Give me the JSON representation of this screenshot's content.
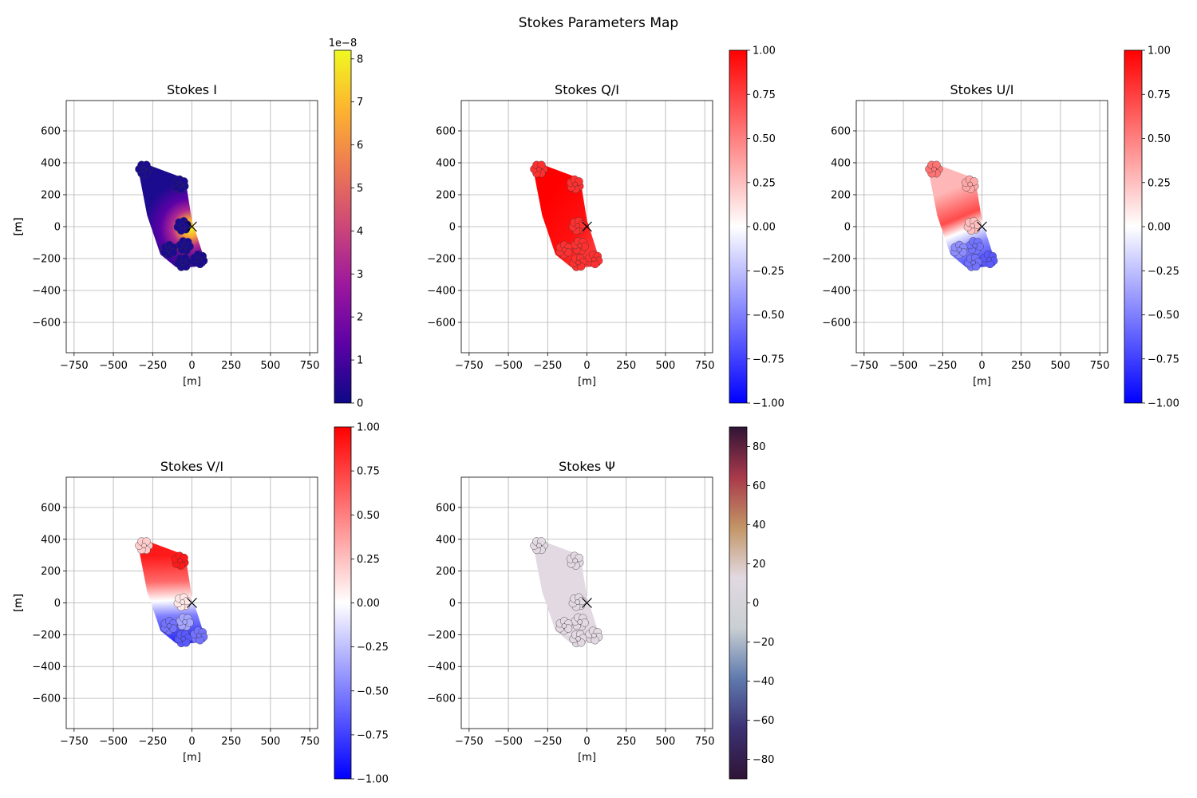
{
  "figure_title": "Stokes Parameters Map",
  "chart_data": [
    {
      "type": "heatmap",
      "title": "Stokes I",
      "xlabel": "[m]",
      "ylabel": "[m]",
      "xlim": [
        -800,
        800
      ],
      "ylim": [
        -790,
        790
      ],
      "xticks": [
        "−750",
        "−500",
        "−250",
        "0",
        "250",
        "500",
        "750"
      ],
      "xtick_values": [
        -750,
        -500,
        -250,
        0,
        250,
        500,
        750
      ],
      "yticks": [
        "600",
        "400",
        "200",
        "0",
        "−200",
        "−400",
        "−600"
      ],
      "ytick_values": [
        600,
        400,
        200,
        0,
        -200,
        -400,
        -600
      ],
      "grid": true,
      "colormap": "plasma",
      "colorbar": {
        "min": 0,
        "max": 8.2,
        "exponent": "1e−8",
        "ticks": [
          "0",
          "1",
          "2",
          "3",
          "4",
          "5",
          "6",
          "7",
          "8"
        ],
        "tick_values": [
          0,
          1,
          2,
          3,
          4,
          5,
          6,
          7,
          8
        ]
      },
      "hotspot": [
        -10,
        -10
      ],
      "marker": {
        "symbol": "x",
        "position": [
          0,
          0
        ]
      }
    },
    {
      "type": "heatmap",
      "title": "Stokes Q/I",
      "xlabel": "[m]",
      "ylabel": "[m]",
      "xlim": [
        -800,
        800
      ],
      "ylim": [
        -790,
        790
      ],
      "xticks": [
        "−750",
        "−500",
        "−250",
        "0",
        "250",
        "500",
        "750"
      ],
      "xtick_values": [
        -750,
        -500,
        -250,
        0,
        250,
        500,
        750
      ],
      "yticks": [
        "600",
        "400",
        "200",
        "0",
        "−200",
        "−400",
        "−600"
      ],
      "ytick_values": [
        600,
        400,
        200,
        0,
        -200,
        -400,
        -600
      ],
      "grid": true,
      "colormap": "bwr",
      "colorbar": {
        "min": -1,
        "max": 1,
        "ticks": [
          "1.00",
          "0.75",
          "0.50",
          "0.25",
          "0.00",
          "−0.25",
          "−0.50",
          "−0.75",
          "−1.00"
        ],
        "tick_values": [
          1,
          0.75,
          0.5,
          0.25,
          0,
          -0.25,
          -0.5,
          -0.75,
          -1
        ]
      },
      "value_at_antennas": 1.0,
      "marker": {
        "symbol": "x",
        "position": [
          0,
          0
        ]
      }
    },
    {
      "type": "heatmap",
      "title": "Stokes U/I",
      "xlabel": "[m]",
      "ylabel": "[m]",
      "xlim": [
        -800,
        800
      ],
      "ylim": [
        -790,
        790
      ],
      "xticks": [
        "−750",
        "−500",
        "−250",
        "0",
        "250",
        "500",
        "750"
      ],
      "xtick_values": [
        -750,
        -500,
        -250,
        0,
        250,
        500,
        750
      ],
      "yticks": [
        "600",
        "400",
        "200",
        "0",
        "−200",
        "−400",
        "−600"
      ],
      "ytick_values": [
        600,
        400,
        200,
        0,
        -200,
        -400,
        -600
      ],
      "grid": true,
      "colormap": "bwr",
      "colorbar": {
        "min": -1,
        "max": 1,
        "ticks": [
          "1.00",
          "0.75",
          "0.50",
          "0.25",
          "0.00",
          "−0.25",
          "−0.50",
          "−0.75",
          "−1.00"
        ],
        "tick_values": [
          1,
          0.75,
          0.5,
          0.25,
          0,
          -0.25,
          -0.5,
          -0.75,
          -1
        ]
      },
      "marker": {
        "symbol": "x",
        "position": [
          0,
          0
        ]
      }
    },
    {
      "type": "heatmap",
      "title": "Stokes V/I",
      "xlabel": "[m]",
      "ylabel": "[m]",
      "xlim": [
        -800,
        800
      ],
      "ylim": [
        -790,
        790
      ],
      "xticks": [
        "−750",
        "−500",
        "−250",
        "0",
        "250",
        "500",
        "750"
      ],
      "xtick_values": [
        -750,
        -500,
        -250,
        0,
        250,
        500,
        750
      ],
      "yticks": [
        "600",
        "400",
        "200",
        "0",
        "−200",
        "−400",
        "−600"
      ],
      "ytick_values": [
        600,
        400,
        200,
        0,
        -200,
        -400,
        -600
      ],
      "grid": true,
      "colormap": "bwr",
      "colorbar": {
        "min": -1,
        "max": 1,
        "ticks": [
          "1.00",
          "0.75",
          "0.50",
          "0.25",
          "0.00",
          "−0.25",
          "−0.50",
          "−0.75",
          "−1.00"
        ],
        "tick_values": [
          1,
          0.75,
          0.5,
          0.25,
          0,
          -0.25,
          -0.5,
          -0.75,
          -1
        ]
      },
      "marker": {
        "symbol": "x",
        "position": [
          0,
          0
        ]
      }
    },
    {
      "type": "heatmap",
      "title": "Stokes Ψ",
      "xlabel": "[m]",
      "ylabel": "[m]",
      "xlim": [
        -800,
        800
      ],
      "ylim": [
        -790,
        790
      ],
      "xticks": [
        "−750",
        "−500",
        "−250",
        "0",
        "250",
        "500",
        "750"
      ],
      "xtick_values": [
        -750,
        -500,
        -250,
        0,
        250,
        500,
        750
      ],
      "yticks": [
        "600",
        "400",
        "200",
        "0",
        "−200",
        "−400",
        "−600"
      ],
      "ytick_values": [
        600,
        400,
        200,
        0,
        -200,
        -400,
        -600
      ],
      "grid": true,
      "colormap": "twilight_shifted",
      "colorbar": {
        "min": -90,
        "max": 90,
        "ticks": [
          "80",
          "60",
          "40",
          "20",
          "0",
          "−20",
          "−40",
          "−60",
          "−80"
        ],
        "tick_values": [
          80,
          60,
          40,
          20,
          0,
          -20,
          -40,
          -60,
          -80
        ]
      },
      "value_at_antennas": 0,
      "marker": {
        "symbol": "x",
        "position": [
          0,
          0
        ]
      }
    }
  ],
  "footprint": {
    "hull": [
      [
        -345,
        375
      ],
      [
        -300,
        395
      ],
      [
        -55,
        305
      ],
      [
        -35,
        255
      ],
      [
        0,
        40
      ],
      [
        75,
        -190
      ],
      [
        100,
        -210
      ],
      [
        80,
        -245
      ],
      [
        -70,
        -260
      ],
      [
        -100,
        -255
      ],
      [
        -200,
        -175
      ],
      [
        -285,
        70
      ]
    ],
    "stations": [
      {
        "center": [
          -305,
          360
        ],
        "values": {
          "u": 0.55,
          "v": 0.2
        }
      },
      {
        "center": [
          -75,
          265
        ],
        "values": {
          "u": 0.35,
          "v": 0.9
        }
      },
      {
        "center": [
          -60,
          5
        ],
        "values": {
          "u": 0.25,
          "v": 0.1
        }
      },
      {
        "center": [
          -45,
          -120
        ],
        "values": {
          "u": -0.55,
          "v": -0.35
        }
      },
      {
        "center": [
          -145,
          -145
        ],
        "values": {
          "u": -0.45,
          "v": -0.55
        }
      },
      {
        "center": [
          -55,
          -225
        ],
        "values": {
          "u": -0.55,
          "v": -0.65
        }
      },
      {
        "center": [
          45,
          -205
        ],
        "values": {
          "u": -0.65,
          "v": -0.55
        }
      }
    ]
  }
}
